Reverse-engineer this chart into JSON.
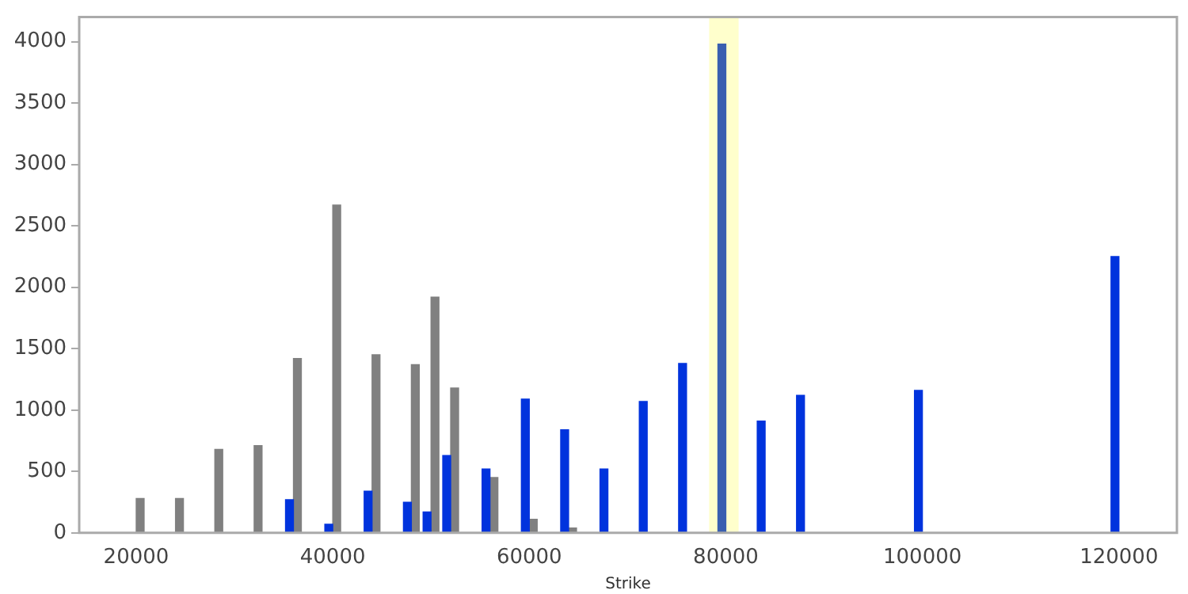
{
  "chart_data": {
    "type": "bar",
    "xlabel": "Strike",
    "x": [
      20000,
      24000,
      28000,
      32000,
      36000,
      40000,
      44000,
      48000,
      50000,
      52000,
      56000,
      60000,
      64000,
      68000,
      72000,
      76000,
      80000,
      84000,
      88000,
      100000,
      120000
    ],
    "series": [
      {
        "color": "#0033dd",
        "colors": [
          "#0033dd",
          "#0033dd",
          "#0033dd",
          "#0033dd",
          "#0033dd",
          "#0033dd",
          "#0033dd",
          "#0033dd",
          "#0033dd",
          "#0033dd",
          "#0033dd",
          "#0033dd",
          "#0033dd",
          "#0033dd",
          "#0033dd",
          "#0033dd",
          "#3a5fb0",
          "#0033dd",
          "#0033dd",
          "#0033dd",
          "#0033dd"
        ],
        "values": [
          null,
          null,
          null,
          null,
          270,
          70,
          340,
          250,
          170,
          630,
          520,
          1090,
          840,
          520,
          1070,
          1380,
          3980,
          910,
          1120,
          1160,
          2250
        ]
      },
      {
        "color": "#808080",
        "values": [
          280,
          280,
          680,
          710,
          1420,
          2670,
          1450,
          1370,
          1920,
          1180,
          450,
          110,
          40,
          null,
          null,
          null,
          null,
          null,
          null,
          null,
          null
        ]
      }
    ],
    "bands": [
      {
        "axis": "x",
        "from": 78300,
        "to": 81300,
        "color": "#ffffcc"
      }
    ],
    "xlim": [
      14200,
      125900
    ],
    "xticks": [
      20000,
      40000,
      60000,
      80000,
      100000,
      120000
    ],
    "ylim": [
      0,
      4200
    ],
    "yticks": [
      0,
      500,
      1000,
      1500,
      2000,
      2500,
      3000,
      3500,
      4000
    ],
    "grid": false,
    "legend": false
  }
}
